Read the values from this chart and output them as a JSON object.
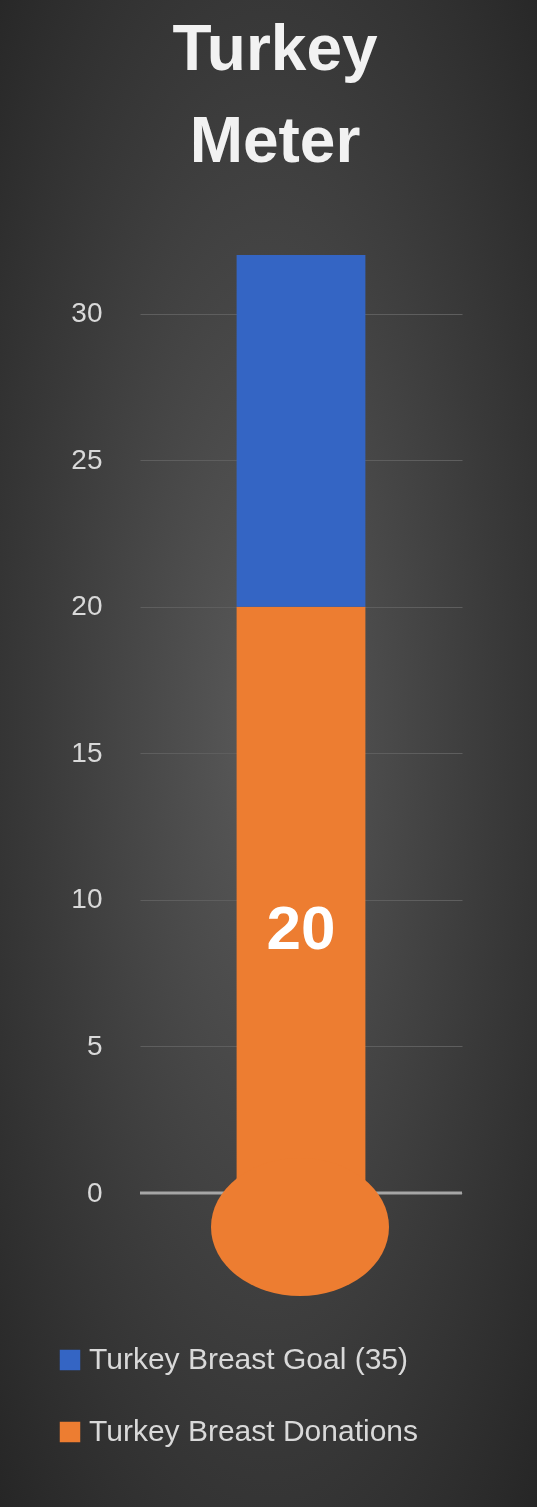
{
  "chart_data": {
    "type": "bar",
    "title": "Turkey Meter",
    "categories": [
      null
    ],
    "stacked": true,
    "series": [
      {
        "name": "Turkey Breast Donations",
        "color": "#ed7d31",
        "values": [
          20
        ],
        "value_labels": [
          "20"
        ]
      },
      {
        "name": "Turkey Breast Goal (35)",
        "color": "#3465c4",
        "values": [
          12
        ]
      }
    ],
    "ylim": [
      0,
      32
    ],
    "yticks": [
      0,
      5,
      10,
      15,
      20,
      25,
      30
    ],
    "grid": "y",
    "legend": "bottom"
  }
}
